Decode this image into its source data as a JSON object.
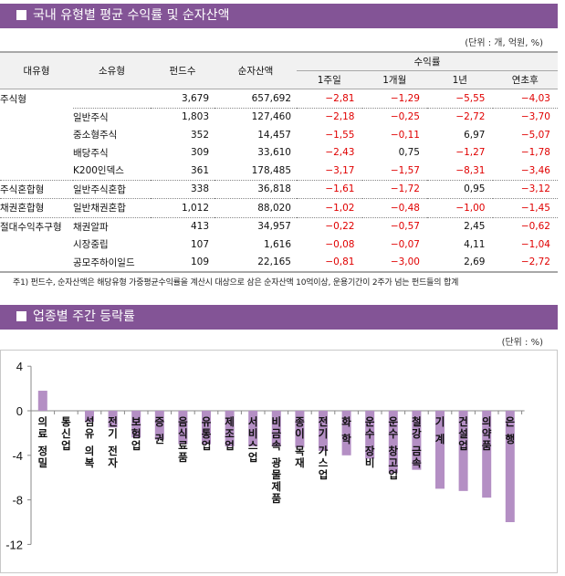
{
  "section1": {
    "title": "국내 유형별 평균 수익률 및 순자산액",
    "unit": "(단위 : 개, 억원, %)",
    "table": {
      "headers": {
        "major": "대유형",
        "minor": "소유형",
        "funds": "펀드수",
        "nav": "순자산액",
        "returns_group": "수익률",
        "w1": "1주일",
        "m1": "1개월",
        "y1": "1년",
        "ytd": "연초후"
      },
      "rows": [
        {
          "major": "주식형",
          "minor": "",
          "funds": "3,679",
          "nav": "657,692",
          "w1": "-2.81",
          "m1": "-1.29",
          "y1": "-5.55",
          "ytd": "-4.03"
        },
        {
          "major": "",
          "minor": "일반주식",
          "funds": "1,803",
          "nav": "127,460",
          "w1": "-2.18",
          "m1": "-0.25",
          "y1": "-2.72",
          "ytd": "-3.70"
        },
        {
          "major": "",
          "minor": "중소형주식",
          "funds": "352",
          "nav": "14,457",
          "w1": "-1.55",
          "m1": "-0.11",
          "y1": "6.97",
          "ytd": "-5.07"
        },
        {
          "major": "",
          "minor": "배당주식",
          "funds": "309",
          "nav": "33,610",
          "w1": "-2.43",
          "m1": "0.75",
          "y1": "-1.27",
          "ytd": "-1.78"
        },
        {
          "major": "",
          "minor": "K200인덱스",
          "funds": "361",
          "nav": "178,485",
          "w1": "-3.17",
          "m1": "-1.57",
          "y1": "-8.31",
          "ytd": "-3.46"
        },
        {
          "major": "주식혼합형",
          "minor": "일반주식혼합",
          "funds": "338",
          "nav": "36,818",
          "w1": "-1.61",
          "m1": "-1.72",
          "y1": "0.95",
          "ytd": "-3.12"
        },
        {
          "major": "채권혼합형",
          "minor": "일반채권혼합",
          "funds": "1,012",
          "nav": "88,020",
          "w1": "-1.02",
          "m1": "-0.48",
          "y1": "-1.00",
          "ytd": "-1.45"
        },
        {
          "major": "절대수익추구형",
          "minor": "채권알파",
          "funds": "413",
          "nav": "34,957",
          "w1": "-0.22",
          "m1": "-0.57",
          "y1": "2.45",
          "ytd": "-0.62"
        },
        {
          "major": "",
          "minor": "시장중립",
          "funds": "107",
          "nav": "1,616",
          "w1": "-0.08",
          "m1": "-0.07",
          "y1": "4.11",
          "ytd": "-1.04"
        },
        {
          "major": "",
          "minor": "공모주하이일드",
          "funds": "109",
          "nav": "22,165",
          "w1": "-0.81",
          "m1": "-3.00",
          "y1": "2.69",
          "ytd": "-2.72"
        }
      ]
    },
    "note": "주1) 펀드수, 순자산액은 해당유형 가중평균수익률을 계산시 대상으로 삼은 순자산액 10억이상, 운용기간이 2주가 넘는 펀드들의 합계"
  },
  "section2": {
    "title": "업종별 주간 등락률",
    "unit": "(단위 : %)"
  },
  "colors": {
    "header_bg": "#835496",
    "bar": "#b48fc4",
    "negative": "#e00000",
    "table_header_bg": "#f1f1f1"
  },
  "chart_data": {
    "type": "bar",
    "title": "업종별 주간 등락률",
    "xlabel": "",
    "ylabel": "%",
    "ylim": [
      -12,
      4
    ],
    "yticks": [
      4,
      0,
      -4,
      -8,
      -12
    ],
    "grid": false,
    "legend": null,
    "categories": [
      "의료정밀",
      "통신업",
      "섬유의복",
      "전기전자",
      "보험업",
      "증권",
      "음식료품",
      "유통업",
      "제조업",
      "서비스업",
      "비금속광물제품",
      "종이목재",
      "전기가스업",
      "화학",
      "운수장비",
      "운수창고업",
      "철강금속",
      "기계",
      "건설업",
      "의약품",
      "은행"
    ],
    "labels_display": [
      "의료 정밀",
      "통신업",
      "섬유 의복",
      "전기 전자",
      "보험업",
      "증 권",
      "음식료품",
      "유통업",
      "제조업",
      "서비스업",
      "비금속 광물제품",
      "종이 목재",
      "전기 가스업",
      "화 학",
      "운수 장비",
      "운수 창고업",
      "철강 금속",
      "기 계",
      "건설업",
      "의약품",
      "은 행"
    ],
    "values": [
      1.8,
      0.0,
      -1.0,
      -1.5,
      -2.4,
      -2.6,
      -3.0,
      -3.0,
      -3.2,
      -3.2,
      -3.2,
      -3.3,
      -3.6,
      -4.0,
      -4.3,
      -5.6,
      -5.3,
      -7.0,
      -7.2,
      -7.8,
      -10.0
    ]
  }
}
